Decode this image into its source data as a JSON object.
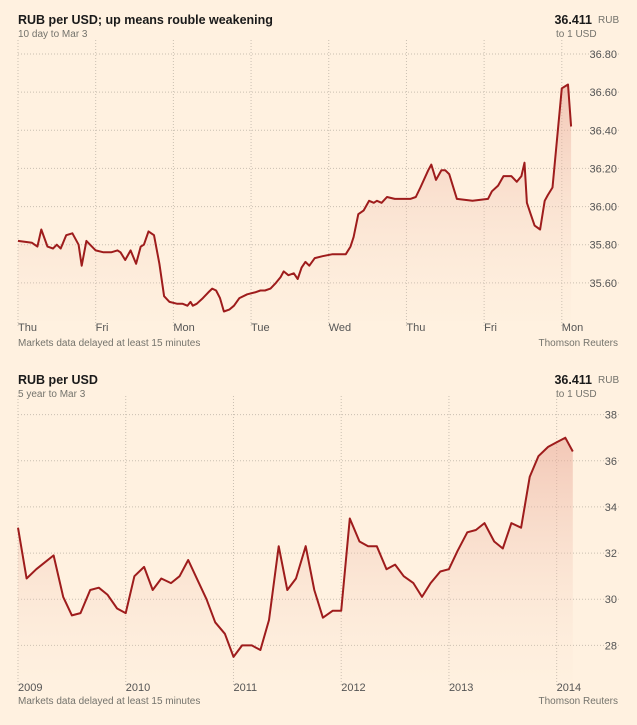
{
  "chart_data": [
    {
      "type": "area",
      "title": "RUB per USD; up means rouble weakening",
      "subtitle": "10 day to Mar 3",
      "latest_value": "36.411",
      "unit": "RUB",
      "per": "to 1 USD",
      "footnote": "Markets data delayed at least 15 minutes",
      "source": "Thomson Reuters",
      "ylim": [
        35.4,
        36.8
      ],
      "yticks": [
        "35.60",
        "35.80",
        "36.00",
        "36.20",
        "36.40",
        "36.60",
        "36.80"
      ],
      "yvalues": [
        35.6,
        35.8,
        36.0,
        36.2,
        36.4,
        36.6,
        36.8
      ],
      "xlim": [
        0,
        7.35
      ],
      "xticks": [
        "Thu",
        "Fri",
        "Mon",
        "Tue",
        "Wed",
        "Thu",
        "Fri",
        "Mon"
      ],
      "xtickpos": [
        0,
        1,
        2,
        3,
        4,
        5,
        6,
        7
      ],
      "grid": true,
      "series": [
        {
          "color": "#9e1c1c",
          "x": [
            0,
            0.18,
            0.25,
            0.3,
            0.38,
            0.45,
            0.5,
            0.55,
            0.62,
            0.7,
            0.78,
            0.82,
            0.88,
            1.0,
            1.1,
            1.2,
            1.28,
            1.32,
            1.38,
            1.45,
            1.52,
            1.58,
            1.62,
            1.68,
            1.75,
            1.82,
            1.88,
            1.95,
            2.05,
            2.12,
            2.18,
            2.22,
            2.25,
            2.3,
            2.38,
            2.45,
            2.5,
            2.55,
            2.6,
            2.65,
            2.72,
            2.78,
            2.85,
            2.95,
            3.05,
            3.12,
            3.18,
            3.25,
            3.32,
            3.38,
            3.42,
            3.48,
            3.55,
            3.6,
            3.65,
            3.7,
            3.75,
            3.82,
            3.92,
            4.05,
            4.15,
            4.22,
            4.28,
            4.32,
            4.38,
            4.45,
            4.52,
            4.58,
            4.62,
            4.68,
            4.75,
            4.85,
            5.05,
            5.12,
            5.18,
            5.28,
            5.32,
            5.38,
            5.45,
            5.5,
            5.55,
            5.65,
            5.85,
            6.05,
            6.1,
            6.18,
            6.25,
            6.35,
            6.42,
            6.48,
            6.52,
            6.55,
            6.6,
            6.65,
            6.72,
            6.78,
            6.82,
            6.88,
            7.0,
            7.08,
            7.12
          ],
          "y": [
            35.82,
            35.81,
            35.79,
            35.88,
            35.79,
            35.78,
            35.8,
            35.78,
            35.85,
            35.86,
            35.8,
            35.69,
            35.82,
            35.77,
            35.76,
            35.76,
            35.77,
            35.76,
            35.72,
            35.77,
            35.7,
            35.79,
            35.8,
            35.87,
            35.85,
            35.7,
            35.53,
            35.5,
            35.49,
            35.49,
            35.48,
            35.5,
            35.48,
            35.49,
            35.52,
            35.55,
            35.57,
            35.56,
            35.52,
            35.45,
            35.46,
            35.48,
            35.52,
            35.54,
            35.55,
            35.56,
            35.56,
            35.57,
            35.6,
            35.63,
            35.66,
            35.64,
            35.65,
            35.62,
            35.68,
            35.71,
            35.69,
            35.73,
            35.74,
            35.75,
            35.75,
            35.75,
            35.79,
            35.84,
            35.96,
            35.98,
            36.03,
            36.02,
            36.03,
            36.02,
            36.05,
            36.04,
            36.04,
            36.05,
            36.1,
            36.19,
            36.22,
            36.14,
            36.19,
            36.19,
            36.17,
            36.04,
            36.03,
            36.04,
            36.08,
            36.11,
            36.16,
            36.16,
            36.13,
            36.16,
            36.23,
            36.02,
            35.96,
            35.9,
            35.88,
            36.03,
            36.06,
            36.1,
            36.62,
            36.64,
            36.42
          ]
        }
      ]
    },
    {
      "type": "area",
      "title": "RUB per USD",
      "subtitle": "5 year to Mar 3",
      "latest_value": "36.411",
      "unit": "RUB",
      "per": "to 1 USD",
      "footnote": "Markets data delayed at least 15 minutes",
      "source": "Thomson Reuters",
      "ylim": [
        26.5,
        38.2
      ],
      "yticks": [
        "28",
        "30",
        "32",
        "34",
        "36",
        "38"
      ],
      "yvalues": [
        28,
        30,
        32,
        34,
        36,
        38
      ],
      "xlim": [
        2009,
        2014.3
      ],
      "xticks": [
        "2009",
        "2010",
        "2011",
        "2012",
        "2013",
        "2014"
      ],
      "xtickpos": [
        2009,
        2010,
        2011,
        2012,
        2013,
        2014
      ],
      "grid": true,
      "series": [
        {
          "color": "#9e1c1c",
          "x": [
            2009.0,
            2009.08,
            2009.17,
            2009.25,
            2009.33,
            2009.42,
            2009.5,
            2009.58,
            2009.67,
            2009.75,
            2009.83,
            2009.92,
            2010.0,
            2010.08,
            2010.17,
            2010.25,
            2010.33,
            2010.42,
            2010.5,
            2010.58,
            2010.67,
            2010.75,
            2010.83,
            2010.92,
            2011.0,
            2011.08,
            2011.17,
            2011.25,
            2011.33,
            2011.42,
            2011.5,
            2011.58,
            2011.67,
            2011.75,
            2011.83,
            2011.92,
            2012.0,
            2012.08,
            2012.17,
            2012.25,
            2012.33,
            2012.42,
            2012.5,
            2012.58,
            2012.67,
            2012.75,
            2012.83,
            2012.92,
            2013.0,
            2013.08,
            2013.17,
            2013.25,
            2013.33,
            2013.42,
            2013.5,
            2013.58,
            2013.67,
            2013.75,
            2013.83,
            2013.92,
            2014.0,
            2014.08,
            2014.15
          ],
          "y": [
            33.1,
            30.9,
            31.3,
            31.6,
            31.9,
            30.1,
            29.3,
            29.4,
            30.4,
            30.5,
            30.2,
            29.6,
            29.4,
            31.0,
            31.4,
            30.4,
            30.9,
            30.7,
            31.0,
            31.7,
            30.8,
            30.0,
            29.0,
            28.5,
            27.5,
            28.0,
            28.0,
            27.8,
            29.1,
            32.3,
            30.4,
            30.9,
            32.3,
            30.4,
            29.2,
            29.5,
            29.5,
            33.5,
            32.5,
            32.3,
            32.3,
            31.3,
            31.5,
            31.0,
            30.7,
            30.1,
            30.7,
            31.2,
            31.3,
            32.1,
            32.9,
            33.0,
            33.3,
            32.5,
            32.2,
            33.3,
            33.1,
            35.3,
            36.2,
            36.6,
            36.8,
            37.0,
            36.4
          ]
        }
      ]
    }
  ]
}
